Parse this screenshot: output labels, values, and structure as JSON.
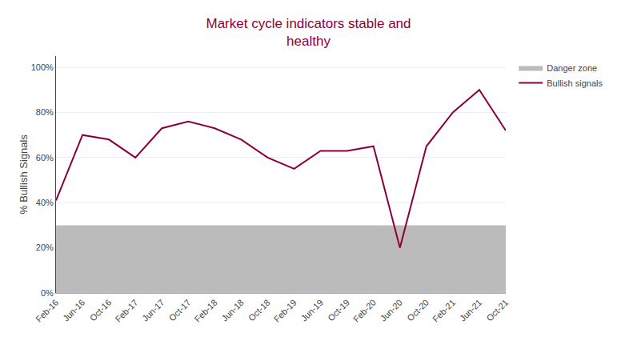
{
  "chart_data": {
    "type": "line",
    "title": "Market cycle indicators stable and\nhealthy",
    "title_color": "#8B0038",
    "ylabel": "% Bullish Signals",
    "categories": [
      "Feb-16",
      "Jun-16",
      "Oct-16",
      "Feb-17",
      "Jun-17",
      "Oct-17",
      "Feb-18",
      "Jun-18",
      "Oct-18",
      "Feb-19",
      "Jun-19",
      "Oct-19",
      "Feb-20",
      "Jun-20",
      "Oct-20",
      "Feb-21",
      "Jun-21",
      "Oct-21"
    ],
    "series": [
      {
        "name": "Danger zone",
        "type": "area",
        "color": "#BBBBBB",
        "values": [
          0.3,
          0.3,
          0.3,
          0.3,
          0.3,
          0.3,
          0.3,
          0.3,
          0.3,
          0.3,
          0.3,
          0.3,
          0.3,
          0.3,
          0.3,
          0.3,
          0.3,
          0.3
        ]
      },
      {
        "name": "Bullish signals",
        "type": "line",
        "color": "#8B0038",
        "values": [
          0.41,
          0.7,
          0.68,
          0.6,
          0.73,
          0.76,
          0.73,
          0.68,
          0.6,
          0.55,
          0.63,
          0.63,
          0.65,
          0.2,
          0.65,
          0.8,
          0.9,
          0.72
        ]
      }
    ],
    "ylim": [
      0,
      1.05
    ],
    "yticks": [
      {
        "value": 0,
        "label": "0%"
      },
      {
        "value": 0.2,
        "label": "20%"
      },
      {
        "value": 0.4,
        "label": "40%"
      },
      {
        "value": 0.6,
        "label": "60%"
      },
      {
        "value": 0.8,
        "label": "80%"
      },
      {
        "value": 1.0,
        "label": "100%"
      }
    ],
    "grid": true,
    "legend": "upper right"
  }
}
